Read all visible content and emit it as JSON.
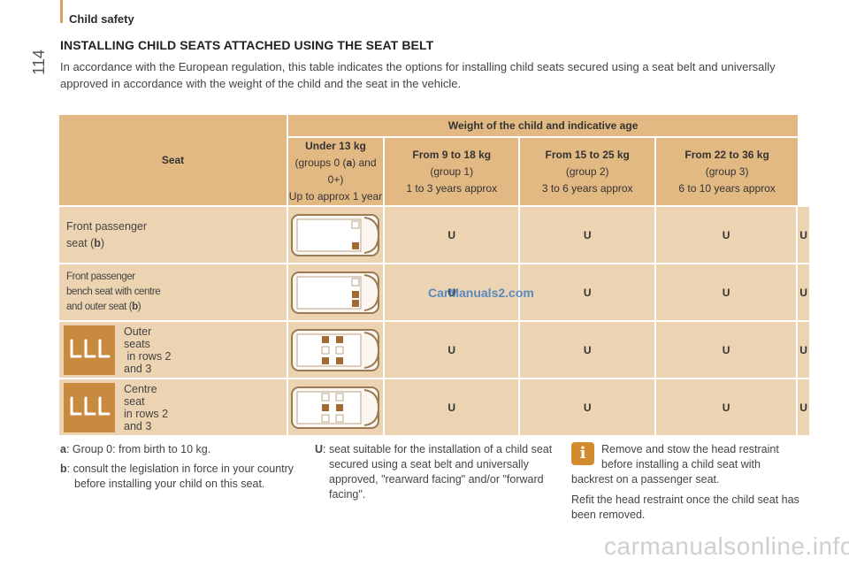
{
  "page": {
    "section": "Child safety",
    "page_number": "114",
    "title": "INSTALLING CHILD SEATS ATTACHED USING THE SEAT BELT",
    "intro": "In accordance with the European regulation, this table indicates the options for installing child seats secured using a seat belt and universally approved in accordance with the weight of the child and the seat in the vehicle."
  },
  "table": {
    "seat_header": "Seat",
    "weight_header": "Weight of the child and indicative age",
    "columns": [
      {
        "weight": "Under 13 kg",
        "group": "(groups 0 (a) and 0+)",
        "age": "Up to approx 1 year"
      },
      {
        "weight": "From 9 to 18 kg",
        "group": "(group 1)",
        "age": "1 to 3 years approx"
      },
      {
        "weight": "From 15 to 25 kg",
        "group": "(group 2)",
        "age": "3 to 6 years approx"
      },
      {
        "weight": "From 22 to 36 kg",
        "group": "(group 3)",
        "age": "6 to 10 years approx"
      }
    ],
    "rows": [
      {
        "label": "Front passenger seat (b)",
        "values": [
          "U",
          "U",
          "U",
          "U"
        ]
      },
      {
        "label": "Front passenger bench seat with centre and outer seat (b)",
        "values": [
          "U",
          "U",
          "U",
          "U"
        ]
      },
      {
        "label": "Outer seats in rows 2 and 3",
        "values": [
          "U",
          "U",
          "U",
          "U"
        ]
      },
      {
        "label": "Centre seat in rows 2 and 3",
        "values": [
          "U",
          "U",
          "U",
          "U"
        ]
      }
    ]
  },
  "notes": {
    "a": "a: Group 0: from birth to 10 kg.",
    "b": "b: consult the legislation in force in your country before installing your child on this seat.",
    "u": "U: seat suitable for the installation of a child seat secured using a seat belt and universally approved, \"rearward facing\" and/or \"forward facing\".",
    "info1": "Remove and stow the head restraint before installing a child seat with backrest on a passenger seat.",
    "info2": "Refit the head restraint once the child seat has been removed."
  },
  "watermarks": {
    "mid": "CarManuals2.com",
    "bottom": "carmanualsonline.info"
  },
  "colors": {
    "header_bg": "#e3b983",
    "row_bg": "#ecd3b2",
    "accent": "#d9a05b",
    "icon_bg": "#c88a3f"
  }
}
